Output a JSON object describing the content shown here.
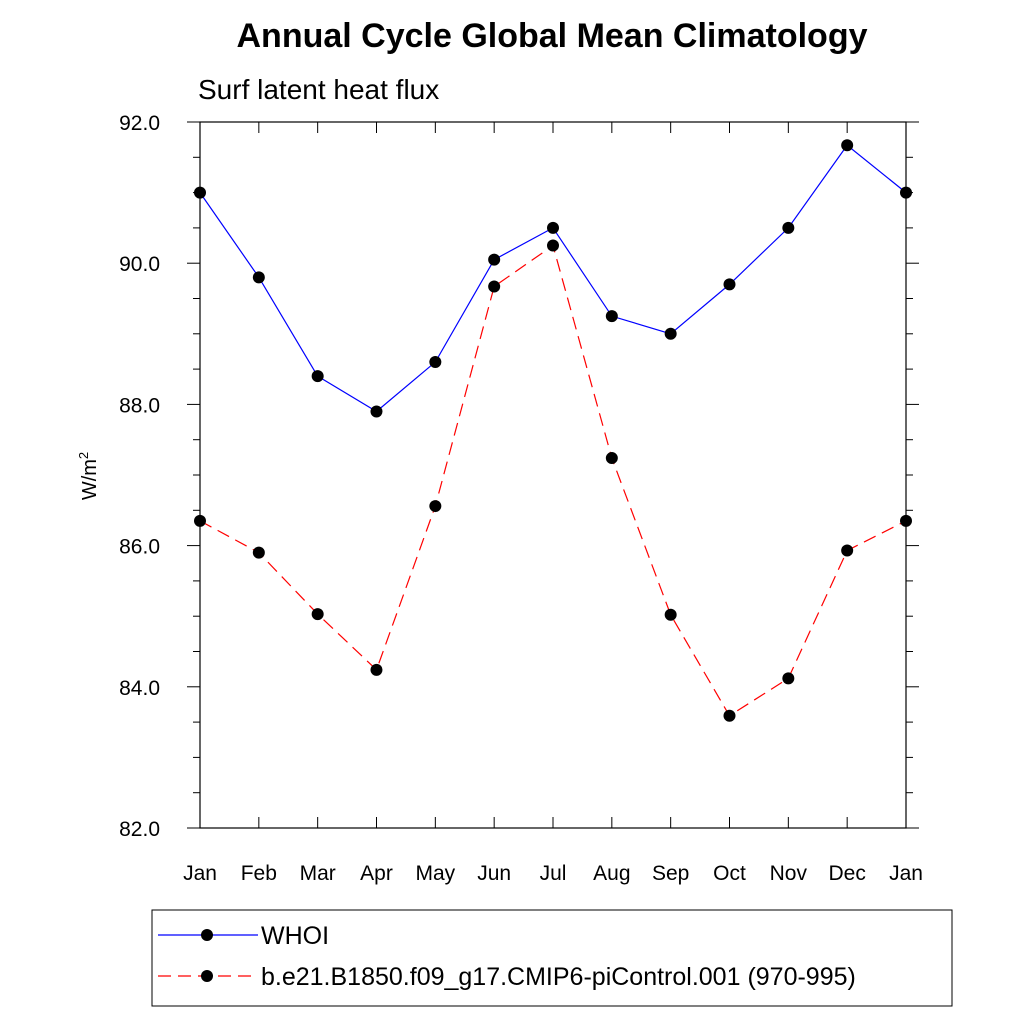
{
  "chart_data": {
    "type": "line",
    "title": "Annual Cycle Global Mean Climatology",
    "subtitle": "Surf latent heat flux",
    "ylabel": "W/m",
    "ylabel_sup": "2",
    "ylim": [
      82.0,
      92.0
    ],
    "yticks": [
      "82.0",
      "84.0",
      "86.0",
      "88.0",
      "90.0",
      "92.0"
    ],
    "categories": [
      "Jan",
      "Feb",
      "Mar",
      "Apr",
      "May",
      "Jun",
      "Jul",
      "Aug",
      "Sep",
      "Oct",
      "Nov",
      "Dec",
      "Jan"
    ],
    "legend_position": "bottom",
    "grid": false,
    "series": [
      {
        "name": "WHOI",
        "color": "#0000ff",
        "dash": "solid",
        "values": [
          91.0,
          89.8,
          88.4,
          87.9,
          88.6,
          90.05,
          90.5,
          89.25,
          89.0,
          89.7,
          90.5,
          91.67,
          91.0
        ]
      },
      {
        "name": "b.e21.B1850.f09_g17.CMIP6-piControl.001 (970-995)",
        "color": "#ff0000",
        "dash": "dashed",
        "values": [
          86.35,
          85.9,
          85.03,
          84.24,
          86.56,
          89.67,
          90.25,
          87.24,
          85.02,
          83.59,
          84.12,
          85.93,
          86.35
        ]
      }
    ]
  }
}
